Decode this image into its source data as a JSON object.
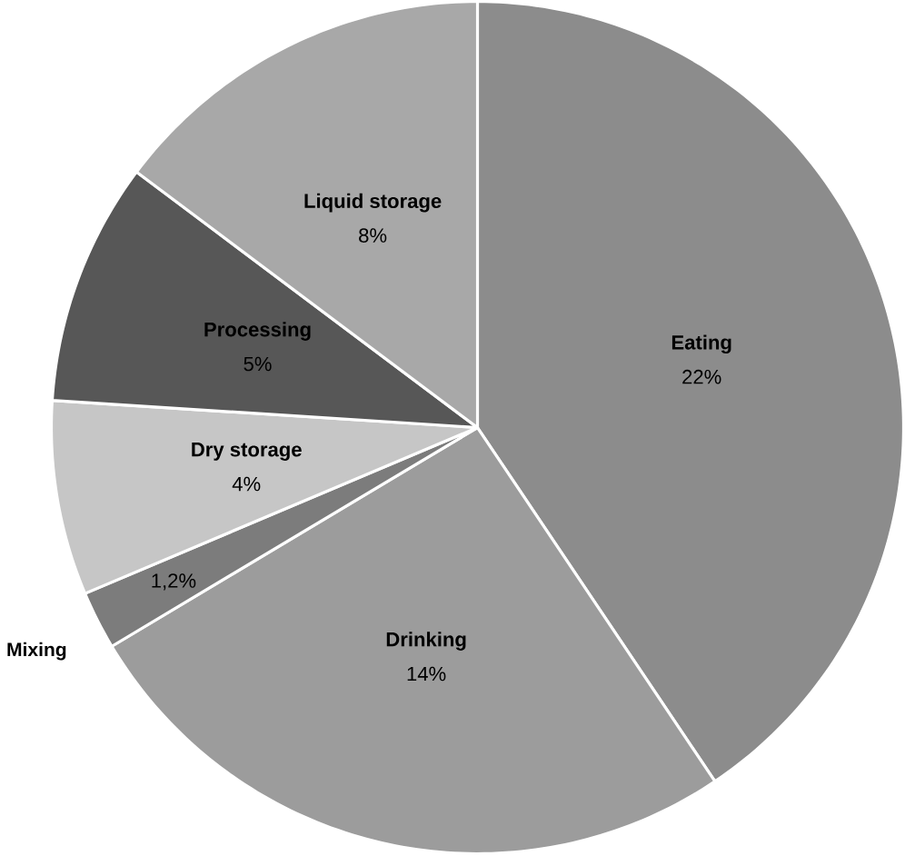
{
  "chart_data": {
    "type": "pie",
    "categories": [
      "Eating",
      "Drinking",
      "Mixing",
      "Dry storage",
      "Processing",
      "Liquid storage"
    ],
    "values": [
      22,
      14,
      1.2,
      4,
      5,
      8
    ],
    "value_labels": [
      "22%",
      "14%",
      "1,2%",
      "4%",
      "5%",
      "8%"
    ],
    "colors": [
      "#8c8c8c",
      "#9c9c9c",
      "#7c7c7c",
      "#c6c6c6",
      "#575757",
      "#a8a8a8"
    ]
  }
}
